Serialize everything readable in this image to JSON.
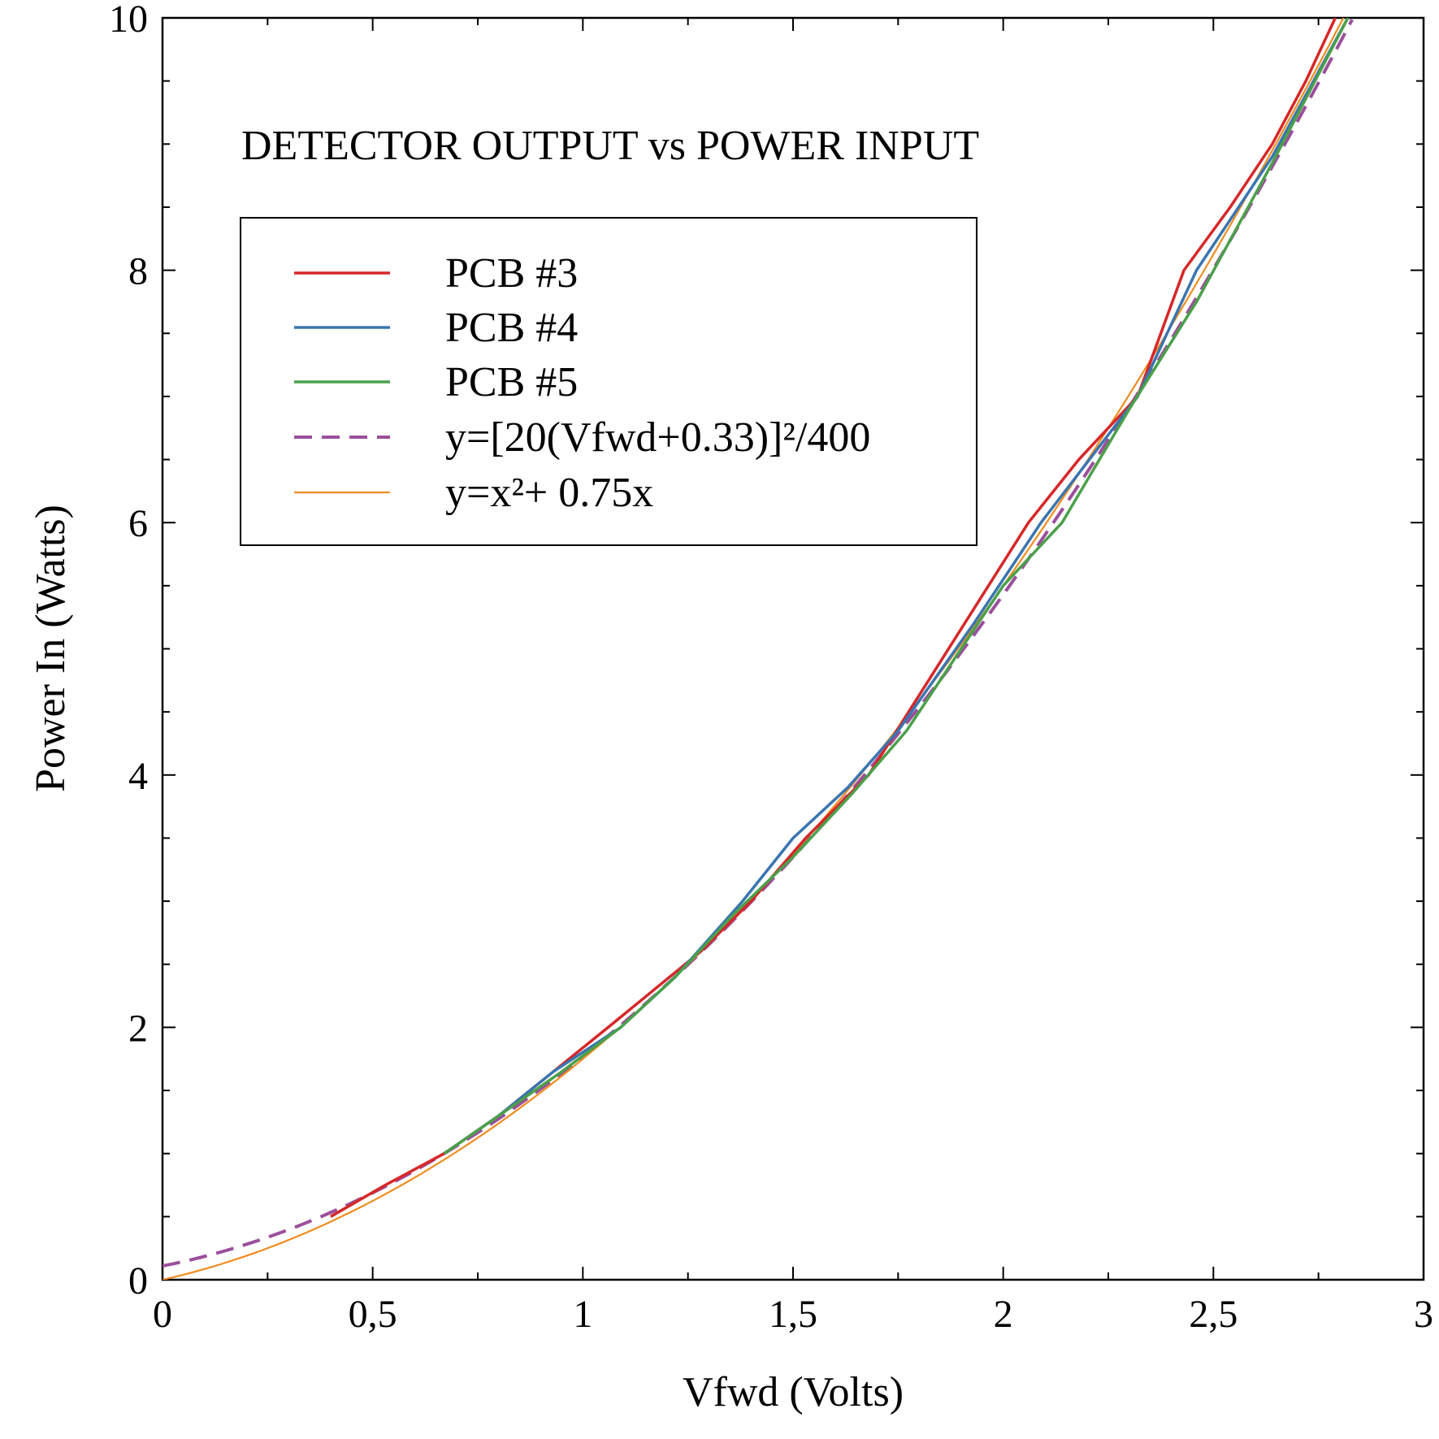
{
  "chart_data": {
    "type": "line",
    "title": "DETECTOR OUTPUT vs POWER INPUT",
    "xlabel": "Vfwd (Volts)",
    "ylabel": "Power In (Watts)",
    "xlim": [
      0,
      3
    ],
    "ylim": [
      0,
      10
    ],
    "x_ticks": [
      0,
      0.5,
      1,
      1.5,
      2,
      2.5,
      3
    ],
    "x_tick_labels": [
      "0",
      "0,5",
      "1",
      "1,5",
      "2",
      "2,5",
      "3"
    ],
    "y_ticks": [
      0,
      2,
      4,
      6,
      8,
      10
    ],
    "y_tick_labels": [
      "0",
      "2",
      "4",
      "6",
      "8",
      "10"
    ],
    "grid": false,
    "legend_position": "top-left",
    "series": [
      {
        "name": "PCB #3",
        "color": "#d62728",
        "style": "solid",
        "x": [
          0.4,
          0.53,
          0.67,
          0.8,
          0.93,
          1.06,
          1.17,
          1.28,
          1.4,
          1.53,
          1.68,
          1.87,
          2.06,
          2.18,
          2.32,
          2.43,
          2.54,
          2.64,
          2.72,
          2.79
        ],
        "y": [
          0.5,
          0.75,
          1.0,
          1.3,
          1.65,
          2.0,
          2.3,
          2.6,
          3.0,
          3.5,
          4.0,
          5.0,
          6.0,
          6.5,
          7.0,
          8.0,
          8.5,
          9.0,
          9.5,
          10.0
        ]
      },
      {
        "name": "PCB #4",
        "color": "#3a75b0",
        "style": "solid",
        "x": [
          0.67,
          0.8,
          0.93,
          1.09,
          1.22,
          1.38,
          1.5,
          1.63,
          1.75,
          1.93,
          2.09,
          2.32,
          2.46,
          2.64,
          2.82
        ],
        "y": [
          1.0,
          1.3,
          1.65,
          2.0,
          2.4,
          3.0,
          3.5,
          3.9,
          4.35,
          5.2,
          6.0,
          7.0,
          8.0,
          8.9,
          10.0
        ]
      },
      {
        "name": "PCB #5",
        "color": "#4aa04a",
        "style": "solid",
        "x": [
          0.67,
          0.8,
          0.95,
          1.09,
          1.22,
          1.36,
          1.5,
          1.64,
          1.77,
          2.0,
          2.14,
          2.3,
          2.46,
          2.64,
          2.82
        ],
        "y": [
          1.0,
          1.3,
          1.65,
          2.0,
          2.4,
          2.9,
          3.35,
          3.85,
          4.35,
          5.5,
          6.0,
          6.9,
          7.75,
          8.85,
          10.0
        ]
      },
      {
        "name": "y=[20(Vfwd+0.33)]²/400",
        "color": "#9b4f9b",
        "style": "dashed",
        "function": "quadratic_shifted",
        "x_range": [
          0,
          2.83
        ]
      },
      {
        "name": "y=x²+ 0.75x",
        "color": "#f08c1e",
        "style": "thin",
        "function": "quadratic_linear",
        "x_range": [
          0,
          2.82
        ]
      }
    ]
  }
}
